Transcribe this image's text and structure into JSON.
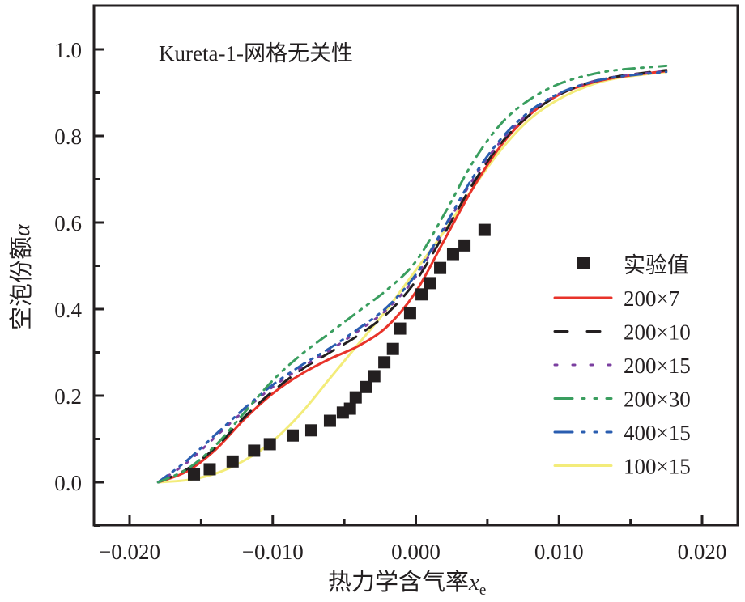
{
  "chart_data": {
    "type": "line",
    "title": "",
    "annotation": "Kureta-1-网格无关性",
    "xlabel": "热力学含气率",
    "xlabel_symbol": "x",
    "xlabel_subscript": "e",
    "ylabel": "空泡份额",
    "ylabel_symbol": "α",
    "xlim": [
      -0.0225,
      0.0225
    ],
    "ylim": [
      -0.1,
      1.1
    ],
    "x_ticks": [
      -0.02,
      -0.01,
      0.0,
      0.01,
      0.02
    ],
    "x_tick_labels": [
      "−0.020",
      "−0.010",
      "0.000",
      "0.010",
      "0.020"
    ],
    "y_ticks": [
      0.0,
      0.2,
      0.4,
      0.6,
      0.8,
      1.0
    ],
    "y_tick_labels": [
      "0.0",
      "0.2",
      "0.4",
      "0.6",
      "0.8",
      "1.0"
    ],
    "grid": false,
    "legend_position": "center-right",
    "experiment": {
      "name": "实验值",
      "color": "#231f20",
      "x": [
        -0.0155,
        -0.0144,
        -0.0128,
        -0.0113,
        -0.0102,
        -0.0086,
        -0.0073,
        -0.006,
        -0.0051,
        -0.0046,
        -0.0042,
        -0.0035,
        -0.0029,
        -0.0022,
        -0.0016,
        -0.0011,
        -0.0004,
        0.0004,
        0.001,
        0.0017,
        0.0026,
        0.0034,
        0.0048
      ],
      "y": [
        0.018,
        0.03,
        0.048,
        0.073,
        0.088,
        0.108,
        0.12,
        0.142,
        0.161,
        0.17,
        0.196,
        0.22,
        0.245,
        0.277,
        0.308,
        0.355,
        0.391,
        0.434,
        0.46,
        0.495,
        0.527,
        0.547,
        0.583
      ]
    },
    "series": [
      {
        "name": "200×7",
        "color": "#e8332a",
        "dash": "solid",
        "x": [
          -0.018,
          -0.016,
          -0.014,
          -0.012,
          -0.01,
          -0.008,
          -0.006,
          -0.004,
          -0.002,
          0.0,
          0.002,
          0.004,
          0.006,
          0.008,
          0.01,
          0.012,
          0.014,
          0.0175
        ],
        "y": [
          0.0,
          0.025,
          0.075,
          0.145,
          0.205,
          0.25,
          0.285,
          0.315,
          0.36,
          0.44,
          0.56,
          0.68,
          0.78,
          0.85,
          0.895,
          0.92,
          0.935,
          0.95
        ]
      },
      {
        "name": "200×10",
        "color": "#231f20",
        "dash": "long-dash",
        "x": [
          -0.018,
          -0.016,
          -0.014,
          -0.012,
          -0.01,
          -0.008,
          -0.006,
          -0.004,
          -0.002,
          0.0,
          0.002,
          0.004,
          0.006,
          0.008,
          0.01,
          0.012,
          0.014,
          0.0175
        ],
        "y": [
          0.0,
          0.03,
          0.08,
          0.15,
          0.21,
          0.26,
          0.3,
          0.34,
          0.39,
          0.465,
          0.575,
          0.69,
          0.785,
          0.85,
          0.895,
          0.922,
          0.937,
          0.952
        ]
      },
      {
        "name": "200×15",
        "color": "#7b3fa0",
        "dash": "dotted",
        "x": [
          -0.018,
          -0.016,
          -0.014,
          -0.012,
          -0.01,
          -0.008,
          -0.006,
          -0.004,
          -0.002,
          0.0,
          0.002,
          0.004,
          0.006,
          0.008,
          0.01,
          0.012,
          0.014,
          0.0175
        ],
        "y": [
          0.0,
          0.045,
          0.105,
          0.165,
          0.22,
          0.265,
          0.305,
          0.35,
          0.4,
          0.475,
          0.585,
          0.7,
          0.79,
          0.855,
          0.897,
          0.922,
          0.937,
          0.95
        ]
      },
      {
        "name": "200×30",
        "color": "#3a9e5f",
        "dash": "dash-dot-dot",
        "x": [
          -0.018,
          -0.016,
          -0.014,
          -0.012,
          -0.01,
          -0.008,
          -0.006,
          -0.004,
          -0.002,
          0.0,
          0.002,
          0.004,
          0.006,
          0.008,
          0.01,
          0.012,
          0.014,
          0.0175
        ],
        "y": [
          0.0,
          0.03,
          0.085,
          0.16,
          0.235,
          0.295,
          0.345,
          0.395,
          0.445,
          0.51,
          0.62,
          0.74,
          0.83,
          0.885,
          0.92,
          0.94,
          0.952,
          0.962
        ]
      },
      {
        "name": "400×15",
        "color": "#2a5db0",
        "dash": "dash-dot-dot",
        "x": [
          -0.018,
          -0.016,
          -0.014,
          -0.012,
          -0.01,
          -0.008,
          -0.006,
          -0.004,
          -0.002,
          0.0,
          0.002,
          0.004,
          0.006,
          0.008,
          0.01,
          0.012,
          0.014,
          0.0175
        ],
        "y": [
          0.0,
          0.05,
          0.11,
          0.17,
          0.225,
          0.27,
          0.31,
          0.355,
          0.405,
          0.48,
          0.59,
          0.705,
          0.795,
          0.858,
          0.898,
          0.922,
          0.936,
          0.948
        ]
      },
      {
        "name": "100×15",
        "color": "#f3ec7a",
        "dash": "solid",
        "x": [
          -0.018,
          -0.016,
          -0.014,
          -0.012,
          -0.01,
          -0.008,
          -0.006,
          -0.004,
          -0.002,
          0.0,
          0.002,
          0.004,
          0.006,
          0.008,
          0.01,
          0.012,
          0.014,
          0.0175
        ],
        "y": [
          0.0,
          0.005,
          0.02,
          0.05,
          0.095,
          0.16,
          0.24,
          0.32,
          0.4,
          0.49,
          0.58,
          0.68,
          0.77,
          0.84,
          0.885,
          0.915,
          0.933,
          0.948
        ]
      }
    ]
  }
}
